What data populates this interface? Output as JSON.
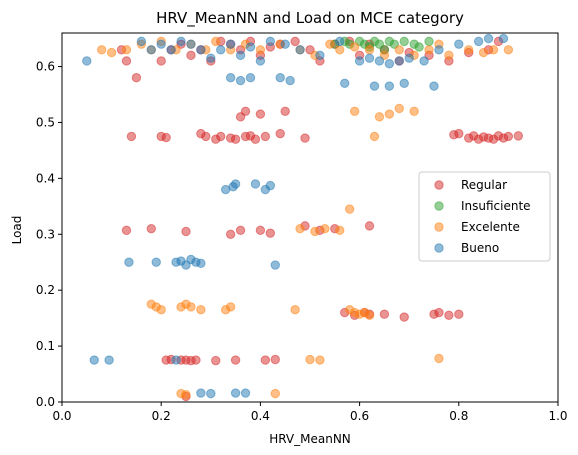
{
  "chart_data": {
    "type": "scatter",
    "title": "HRV_MeanNN and Load on MCE category",
    "xlabel": "HRV_MeanNN",
    "ylabel": "Load",
    "xlim": [
      0.0,
      1.0
    ],
    "ylim": [
      0.0,
      0.66
    ],
    "xticks": [
      "0.0",
      "0.2",
      "0.4",
      "0.6",
      "0.8",
      "1.0"
    ],
    "yticks": [
      "0.0",
      "0.1",
      "0.2",
      "0.3",
      "0.4",
      "0.5",
      "0.6"
    ],
    "grid": false,
    "legend_position": "center-right",
    "series": [
      {
        "name": "Regular",
        "color": "#d62728",
        "points": [
          [
            0.12,
            0.63
          ],
          [
            0.13,
            0.61
          ],
          [
            0.15,
            0.58
          ],
          [
            0.2,
            0.61
          ],
          [
            0.22,
            0.63
          ],
          [
            0.24,
            0.64
          ],
          [
            0.26,
            0.62
          ],
          [
            0.28,
            0.63
          ],
          [
            0.3,
            0.61
          ],
          [
            0.32,
            0.645
          ],
          [
            0.34,
            0.64
          ],
          [
            0.36,
            0.63
          ],
          [
            0.38,
            0.645
          ],
          [
            0.4,
            0.62
          ],
          [
            0.42,
            0.635
          ],
          [
            0.44,
            0.64
          ],
          [
            0.47,
            0.645
          ],
          [
            0.5,
            0.63
          ],
          [
            0.52,
            0.61
          ],
          [
            0.55,
            0.64
          ],
          [
            0.58,
            0.645
          ],
          [
            0.6,
            0.62
          ],
          [
            0.62,
            0.64
          ],
          [
            0.65,
            0.63
          ],
          [
            0.68,
            0.61
          ],
          [
            0.7,
            0.625
          ],
          [
            0.74,
            0.62
          ],
          [
            0.78,
            0.61
          ],
          [
            0.82,
            0.625
          ],
          [
            0.86,
            0.63
          ],
          [
            0.88,
            0.645
          ],
          [
            0.36,
            0.51
          ],
          [
            0.37,
            0.52
          ],
          [
            0.4,
            0.515
          ],
          [
            0.45,
            0.52
          ],
          [
            0.14,
            0.475
          ],
          [
            0.2,
            0.475
          ],
          [
            0.21,
            0.473
          ],
          [
            0.28,
            0.48
          ],
          [
            0.29,
            0.475
          ],
          [
            0.31,
            0.47
          ],
          [
            0.32,
            0.475
          ],
          [
            0.34,
            0.472
          ],
          [
            0.35,
            0.47
          ],
          [
            0.37,
            0.475
          ],
          [
            0.38,
            0.476
          ],
          [
            0.39,
            0.47
          ],
          [
            0.41,
            0.475
          ],
          [
            0.44,
            0.48
          ],
          [
            0.49,
            0.472
          ],
          [
            0.79,
            0.478
          ],
          [
            0.8,
            0.48
          ],
          [
            0.82,
            0.472
          ],
          [
            0.83,
            0.476
          ],
          [
            0.84,
            0.47
          ],
          [
            0.85,
            0.474
          ],
          [
            0.86,
            0.472
          ],
          [
            0.87,
            0.47
          ],
          [
            0.88,
            0.476
          ],
          [
            0.89,
            0.472
          ],
          [
            0.9,
            0.475
          ],
          [
            0.92,
            0.476
          ],
          [
            0.13,
            0.307
          ],
          [
            0.18,
            0.31
          ],
          [
            0.25,
            0.305
          ],
          [
            0.34,
            0.3
          ],
          [
            0.36,
            0.307
          ],
          [
            0.4,
            0.307
          ],
          [
            0.42,
            0.302
          ],
          [
            0.49,
            0.315
          ],
          [
            0.52,
            0.307
          ],
          [
            0.55,
            0.31
          ],
          [
            0.62,
            0.315
          ],
          [
            0.57,
            0.16
          ],
          [
            0.59,
            0.155
          ],
          [
            0.61,
            0.16
          ],
          [
            0.62,
            0.157
          ],
          [
            0.65,
            0.157
          ],
          [
            0.69,
            0.152
          ],
          [
            0.75,
            0.157
          ],
          [
            0.76,
            0.16
          ],
          [
            0.78,
            0.155
          ],
          [
            0.8,
            0.157
          ],
          [
            0.21,
            0.075
          ],
          [
            0.22,
            0.076
          ],
          [
            0.24,
            0.075
          ],
          [
            0.25,
            0.075
          ],
          [
            0.26,
            0.074
          ],
          [
            0.27,
            0.075
          ],
          [
            0.31,
            0.074
          ],
          [
            0.35,
            0.075
          ],
          [
            0.41,
            0.075
          ],
          [
            0.43,
            0.076
          ],
          [
            0.25,
            0.01
          ]
        ]
      },
      {
        "name": "Insuficiente",
        "color": "#2ca02c",
        "points": [
          [
            0.55,
            0.64
          ],
          [
            0.57,
            0.645
          ],
          [
            0.58,
            0.64
          ],
          [
            0.6,
            0.645
          ],
          [
            0.61,
            0.64
          ],
          [
            0.62,
            0.635
          ],
          [
            0.63,
            0.645
          ],
          [
            0.64,
            0.64
          ],
          [
            0.65,
            0.63
          ],
          [
            0.66,
            0.645
          ],
          [
            0.67,
            0.64
          ],
          [
            0.69,
            0.645
          ],
          [
            0.71,
            0.64
          ],
          [
            0.72,
            0.635
          ],
          [
            0.74,
            0.645
          ]
        ]
      },
      {
        "name": "Excelente",
        "color": "#ff7f0e",
        "points": [
          [
            0.08,
            0.63
          ],
          [
            0.1,
            0.625
          ],
          [
            0.13,
            0.63
          ],
          [
            0.16,
            0.64
          ],
          [
            0.18,
            0.63
          ],
          [
            0.2,
            0.645
          ],
          [
            0.23,
            0.63
          ],
          [
            0.26,
            0.64
          ],
          [
            0.29,
            0.63
          ],
          [
            0.31,
            0.645
          ],
          [
            0.34,
            0.63
          ],
          [
            0.37,
            0.64
          ],
          [
            0.4,
            0.63
          ],
          [
            0.44,
            0.64
          ],
          [
            0.48,
            0.63
          ],
          [
            0.51,
            0.62
          ],
          [
            0.54,
            0.64
          ],
          [
            0.56,
            0.63
          ],
          [
            0.59,
            0.635
          ],
          [
            0.62,
            0.63
          ],
          [
            0.65,
            0.62
          ],
          [
            0.68,
            0.63
          ],
          [
            0.71,
            0.62
          ],
          [
            0.74,
            0.63
          ],
          [
            0.76,
            0.64
          ],
          [
            0.78,
            0.62
          ],
          [
            0.82,
            0.63
          ],
          [
            0.85,
            0.625
          ],
          [
            0.87,
            0.63
          ],
          [
            0.9,
            0.63
          ],
          [
            0.59,
            0.52
          ],
          [
            0.64,
            0.51
          ],
          [
            0.66,
            0.515
          ],
          [
            0.68,
            0.525
          ],
          [
            0.71,
            0.52
          ],
          [
            0.63,
            0.475
          ],
          [
            0.48,
            0.31
          ],
          [
            0.51,
            0.305
          ],
          [
            0.53,
            0.31
          ],
          [
            0.56,
            0.307
          ],
          [
            0.58,
            0.345
          ],
          [
            0.18,
            0.175
          ],
          [
            0.19,
            0.17
          ],
          [
            0.2,
            0.165
          ],
          [
            0.24,
            0.17
          ],
          [
            0.25,
            0.175
          ],
          [
            0.26,
            0.17
          ],
          [
            0.28,
            0.165
          ],
          [
            0.33,
            0.165
          ],
          [
            0.34,
            0.17
          ],
          [
            0.47,
            0.165
          ],
          [
            0.58,
            0.165
          ],
          [
            0.59,
            0.16
          ],
          [
            0.6,
            0.157
          ],
          [
            0.61,
            0.16
          ],
          [
            0.62,
            0.155
          ],
          [
            0.5,
            0.076
          ],
          [
            0.52,
            0.075
          ],
          [
            0.76,
            0.078
          ],
          [
            0.24,
            0.015
          ],
          [
            0.25,
            0.013
          ],
          [
            0.43,
            0.015
          ]
        ]
      },
      {
        "name": "Bueno",
        "color": "#1f77b4",
        "points": [
          [
            0.05,
            0.61
          ],
          [
            0.16,
            0.645
          ],
          [
            0.18,
            0.63
          ],
          [
            0.2,
            0.64
          ],
          [
            0.22,
            0.63
          ],
          [
            0.24,
            0.645
          ],
          [
            0.26,
            0.64
          ],
          [
            0.28,
            0.63
          ],
          [
            0.3,
            0.615
          ],
          [
            0.32,
            0.63
          ],
          [
            0.34,
            0.64
          ],
          [
            0.36,
            0.62
          ],
          [
            0.38,
            0.635
          ],
          [
            0.4,
            0.61
          ],
          [
            0.42,
            0.645
          ],
          [
            0.45,
            0.64
          ],
          [
            0.48,
            0.63
          ],
          [
            0.52,
            0.62
          ],
          [
            0.56,
            0.645
          ],
          [
            0.6,
            0.61
          ],
          [
            0.62,
            0.615
          ],
          [
            0.64,
            0.61
          ],
          [
            0.66,
            0.605
          ],
          [
            0.68,
            0.61
          ],
          [
            0.7,
            0.615
          ],
          [
            0.73,
            0.61
          ],
          [
            0.76,
            0.63
          ],
          [
            0.8,
            0.64
          ],
          [
            0.84,
            0.645
          ],
          [
            0.86,
            0.65
          ],
          [
            0.89,
            0.65
          ],
          [
            0.34,
            0.58
          ],
          [
            0.36,
            0.575
          ],
          [
            0.38,
            0.58
          ],
          [
            0.44,
            0.58
          ],
          [
            0.46,
            0.575
          ],
          [
            0.57,
            0.57
          ],
          [
            0.63,
            0.565
          ],
          [
            0.66,
            0.565
          ],
          [
            0.69,
            0.57
          ],
          [
            0.75,
            0.565
          ],
          [
            0.33,
            0.38
          ],
          [
            0.345,
            0.385
          ],
          [
            0.35,
            0.39
          ],
          [
            0.39,
            0.39
          ],
          [
            0.41,
            0.38
          ],
          [
            0.42,
            0.387
          ],
          [
            0.135,
            0.25
          ],
          [
            0.19,
            0.25
          ],
          [
            0.23,
            0.25
          ],
          [
            0.24,
            0.252
          ],
          [
            0.25,
            0.245
          ],
          [
            0.26,
            0.255
          ],
          [
            0.27,
            0.25
          ],
          [
            0.28,
            0.248
          ],
          [
            0.43,
            0.245
          ],
          [
            0.065,
            0.075
          ],
          [
            0.095,
            0.075
          ],
          [
            0.23,
            0.075
          ],
          [
            0.28,
            0.016
          ],
          [
            0.3,
            0.015
          ],
          [
            0.35,
            0.016
          ],
          [
            0.37,
            0.016
          ]
        ]
      }
    ]
  }
}
